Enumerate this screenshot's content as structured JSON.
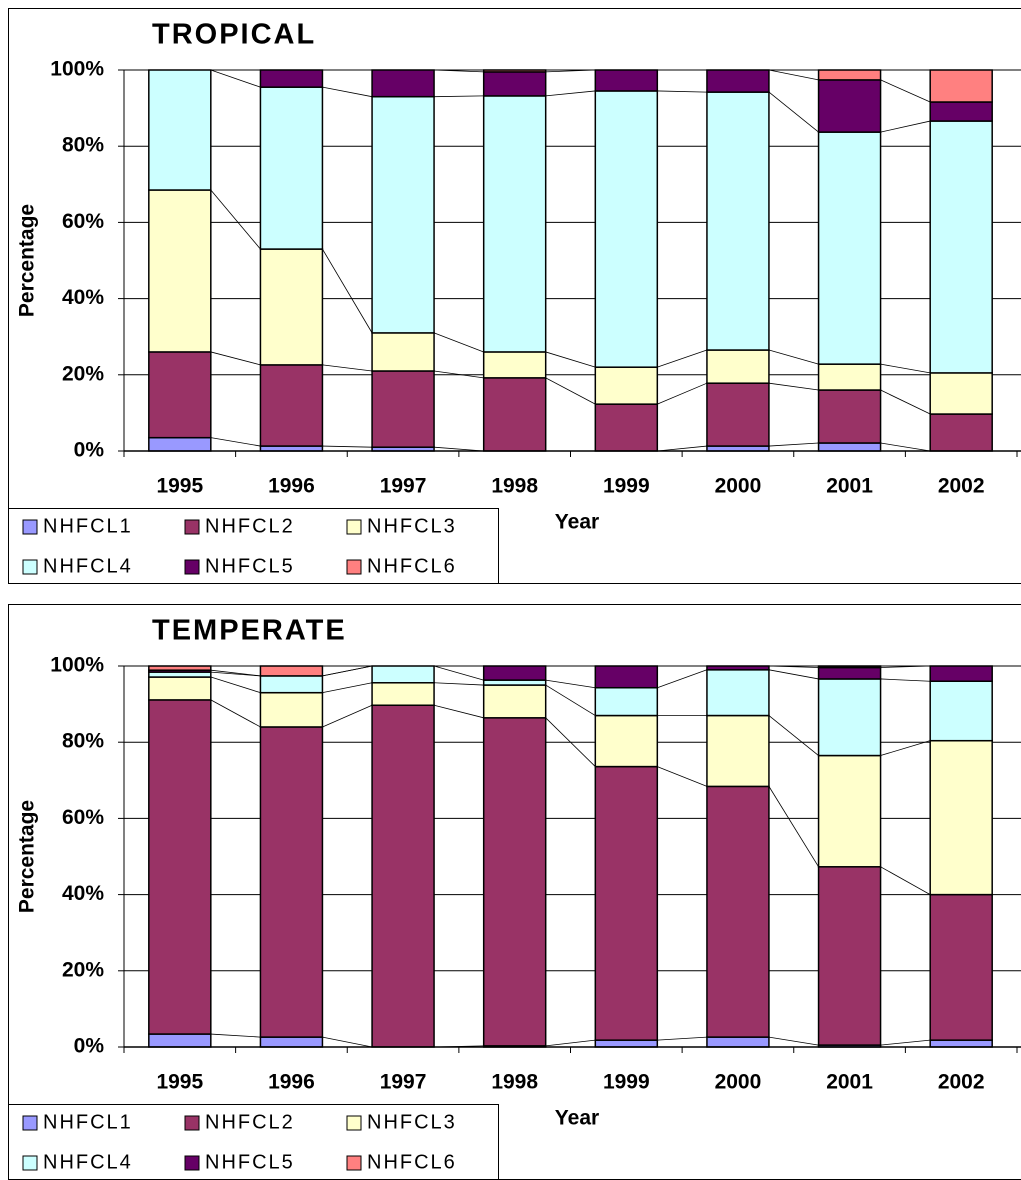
{
  "chart_data": [
    {
      "type": "bar",
      "stacked": true,
      "title": "TROPICAL",
      "ylabel": "Percentage",
      "xlabel": "Year",
      "grid": true,
      "categories": [
        "1995",
        "1996",
        "1997",
        "1998",
        "1999",
        "2000",
        "2001",
        "2002"
      ],
      "ylim": [
        0,
        100
      ],
      "yticks": [
        {
          "value": 0,
          "label": "0%"
        },
        {
          "value": 20,
          "label": "20%"
        },
        {
          "value": 40,
          "label": "40%"
        },
        {
          "value": 60,
          "label": "60%"
        },
        {
          "value": 80,
          "label": "80%"
        },
        {
          "value": 100,
          "label": "100%"
        }
      ],
      "series": [
        {
          "name": "NHFCL1",
          "color": "#9999ff",
          "values": [
            3.5,
            1.3,
            1,
            0,
            0,
            1.3,
            2.1,
            0
          ]
        },
        {
          "name": "NHFCL2",
          "color": "#993366",
          "values": [
            22.5,
            21.3,
            20,
            19.2,
            12.3,
            16.5,
            13.9,
            9.7
          ]
        },
        {
          "name": "NHFCL3",
          "color": "#ffffcc",
          "values": [
            42.5,
            30.4,
            10,
            6.8,
            9.7,
            8.7,
            6.8,
            10.8
          ]
        },
        {
          "name": "NHFCL4",
          "color": "#ccffff",
          "values": [
            31.5,
            42.5,
            62,
            67.2,
            72.5,
            67.7,
            60.9,
            66.1
          ]
        },
        {
          "name": "NHFCL5",
          "color": "#660066",
          "values": [
            0,
            4.5,
            7,
            6.3,
            5.5,
            5.8,
            13.7,
            5
          ]
        },
        {
          "name": "NHFCL6",
          "color": "#ff8080",
          "values": [
            0,
            0,
            0,
            0.5,
            0,
            0,
            2.6,
            8.4
          ]
        }
      ]
    },
    {
      "type": "bar",
      "stacked": true,
      "title": "TEMPERATE",
      "ylabel": "Percentage",
      "xlabel": "Year",
      "grid": true,
      "categories": [
        "1995",
        "1996",
        "1997",
        "1998",
        "1999",
        "2000",
        "2001",
        "2002"
      ],
      "ylim": [
        0,
        100
      ],
      "yticks": [
        {
          "value": 0,
          "label": "0%"
        },
        {
          "value": 20,
          "label": "20%"
        },
        {
          "value": 40,
          "label": "40%"
        },
        {
          "value": 60,
          "label": "60%"
        },
        {
          "value": 80,
          "label": "80%"
        },
        {
          "value": 100,
          "label": "100%"
        }
      ],
      "series": [
        {
          "name": "NHFCL1",
          "color": "#9999ff",
          "values": [
            3.4,
            2.6,
            0,
            0.3,
            1.8,
            2.6,
            0.5,
            1.8
          ]
        },
        {
          "name": "NHFCL2",
          "color": "#993366",
          "values": [
            87.7,
            81.4,
            89.7,
            86.1,
            71.8,
            65.8,
            46.8,
            38.2
          ]
        },
        {
          "name": "NHFCL3",
          "color": "#ffffcc",
          "values": [
            6,
            9,
            5.9,
            8.6,
            13.4,
            18.6,
            29.2,
            40.4
          ]
        },
        {
          "name": "NHFCL4",
          "color": "#ccffff",
          "values": [
            1.3,
            4.4,
            4.4,
            1.3,
            7.3,
            12,
            20.1,
            15.6
          ]
        },
        {
          "name": "NHFCL5",
          "color": "#660066",
          "values": [
            0.5,
            0,
            0,
            3.7,
            5.7,
            1,
            3,
            4
          ]
        },
        {
          "name": "NHFCL6",
          "color": "#ff8080",
          "values": [
            1.1,
            2.6,
            0,
            0,
            0,
            0,
            0.4,
            0
          ]
        }
      ]
    }
  ]
}
